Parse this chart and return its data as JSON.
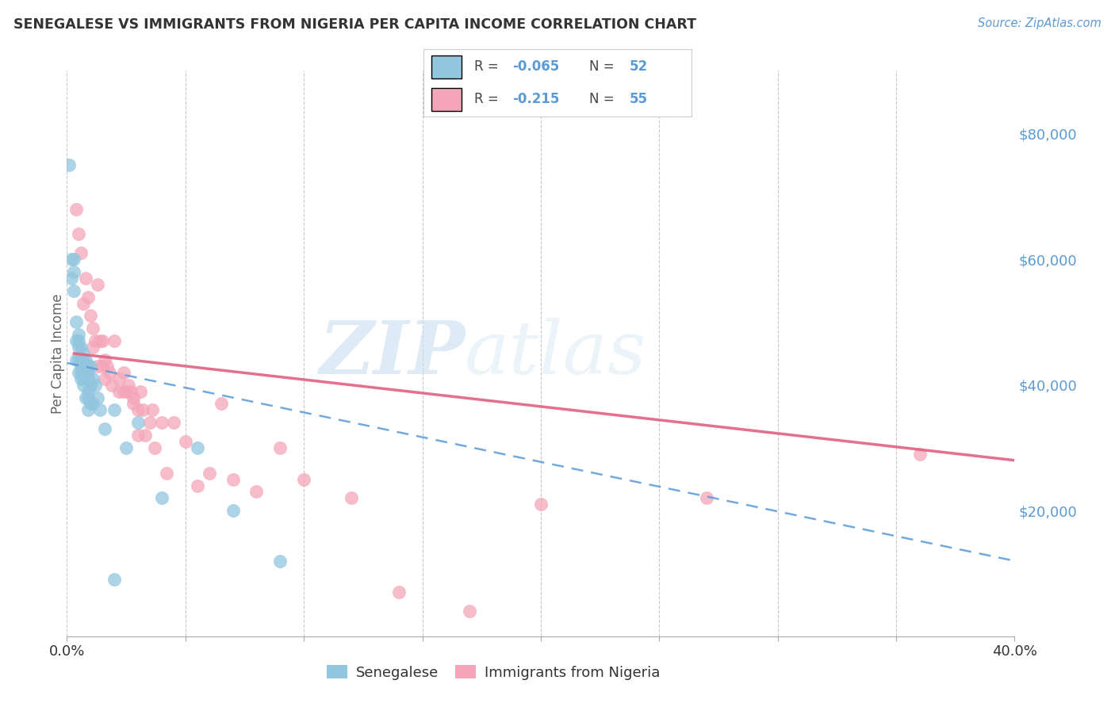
{
  "title": "SENEGALESE VS IMMIGRANTS FROM NIGERIA PER CAPITA INCOME CORRELATION CHART",
  "source": "Source: ZipAtlas.com",
  "ylabel": "Per Capita Income",
  "xlim": [
    0.0,
    0.4
  ],
  "ylim": [
    0,
    90000
  ],
  "yticks": [
    20000,
    40000,
    60000,
    80000
  ],
  "ytick_labels": [
    "$20,000",
    "$40,000",
    "$60,000",
    "$80,000"
  ],
  "xticks": [
    0.0,
    0.05,
    0.1,
    0.15,
    0.2,
    0.25,
    0.3,
    0.35,
    0.4
  ],
  "blue_color": "#92c5de",
  "pink_color": "#f4a6b8",
  "blue_line_color": "#5b9bd5",
  "pink_line_color": "#e06080",
  "watermark_zip": "ZIP",
  "watermark_atlas": "atlas",
  "bg_color": "#ffffff",
  "grid_color": "#c8c8d0",
  "senegalese_x": [
    0.001,
    0.002,
    0.002,
    0.003,
    0.003,
    0.003,
    0.004,
    0.004,
    0.004,
    0.005,
    0.005,
    0.005,
    0.005,
    0.005,
    0.006,
    0.006,
    0.006,
    0.006,
    0.006,
    0.007,
    0.007,
    0.007,
    0.007,
    0.007,
    0.007,
    0.008,
    0.008,
    0.008,
    0.008,
    0.009,
    0.009,
    0.009,
    0.009,
    0.009,
    0.009,
    0.01,
    0.01,
    0.01,
    0.011,
    0.011,
    0.012,
    0.013,
    0.014,
    0.016,
    0.02,
    0.025,
    0.03,
    0.04,
    0.055,
    0.07,
    0.09,
    0.02
  ],
  "senegalese_y": [
    75000,
    60000,
    57000,
    60000,
    58000,
    55000,
    50000,
    47000,
    44000,
    48000,
    47000,
    46000,
    44000,
    42000,
    46000,
    44000,
    43000,
    42000,
    41000,
    45000,
    44000,
    43000,
    42000,
    41000,
    40000,
    44000,
    43000,
    42000,
    38000,
    43000,
    42000,
    41000,
    39000,
    38000,
    36000,
    43000,
    40000,
    37000,
    41000,
    37000,
    40000,
    38000,
    36000,
    33000,
    36000,
    30000,
    34000,
    22000,
    30000,
    20000,
    12000,
    9000
  ],
  "nigeria_x": [
    0.004,
    0.005,
    0.006,
    0.007,
    0.008,
    0.009,
    0.01,
    0.011,
    0.011,
    0.012,
    0.013,
    0.013,
    0.014,
    0.015,
    0.015,
    0.016,
    0.016,
    0.017,
    0.018,
    0.019,
    0.02,
    0.022,
    0.022,
    0.024,
    0.024,
    0.025,
    0.026,
    0.027,
    0.028,
    0.028,
    0.03,
    0.031,
    0.032,
    0.033,
    0.035,
    0.036,
    0.037,
    0.04,
    0.042,
    0.045,
    0.05,
    0.055,
    0.06,
    0.065,
    0.07,
    0.08,
    0.09,
    0.1,
    0.12,
    0.14,
    0.17,
    0.2,
    0.27,
    0.36,
    0.03
  ],
  "nigeria_y": [
    68000,
    64000,
    61000,
    53000,
    57000,
    54000,
    51000,
    49000,
    46000,
    47000,
    43000,
    56000,
    47000,
    47000,
    43000,
    44000,
    41000,
    43000,
    42000,
    40000,
    47000,
    41000,
    39000,
    42000,
    39000,
    39000,
    40000,
    39000,
    38000,
    37000,
    36000,
    39000,
    36000,
    32000,
    34000,
    36000,
    30000,
    34000,
    26000,
    34000,
    31000,
    24000,
    26000,
    37000,
    25000,
    23000,
    30000,
    25000,
    22000,
    7000,
    4000,
    21000,
    22000,
    29000,
    32000
  ],
  "blue_line_x": [
    0.0,
    0.4
  ],
  "blue_line_y": [
    43500,
    12000
  ],
  "pink_line_x": [
    0.003,
    0.4
  ],
  "pink_line_y": [
    45000,
    28000
  ]
}
